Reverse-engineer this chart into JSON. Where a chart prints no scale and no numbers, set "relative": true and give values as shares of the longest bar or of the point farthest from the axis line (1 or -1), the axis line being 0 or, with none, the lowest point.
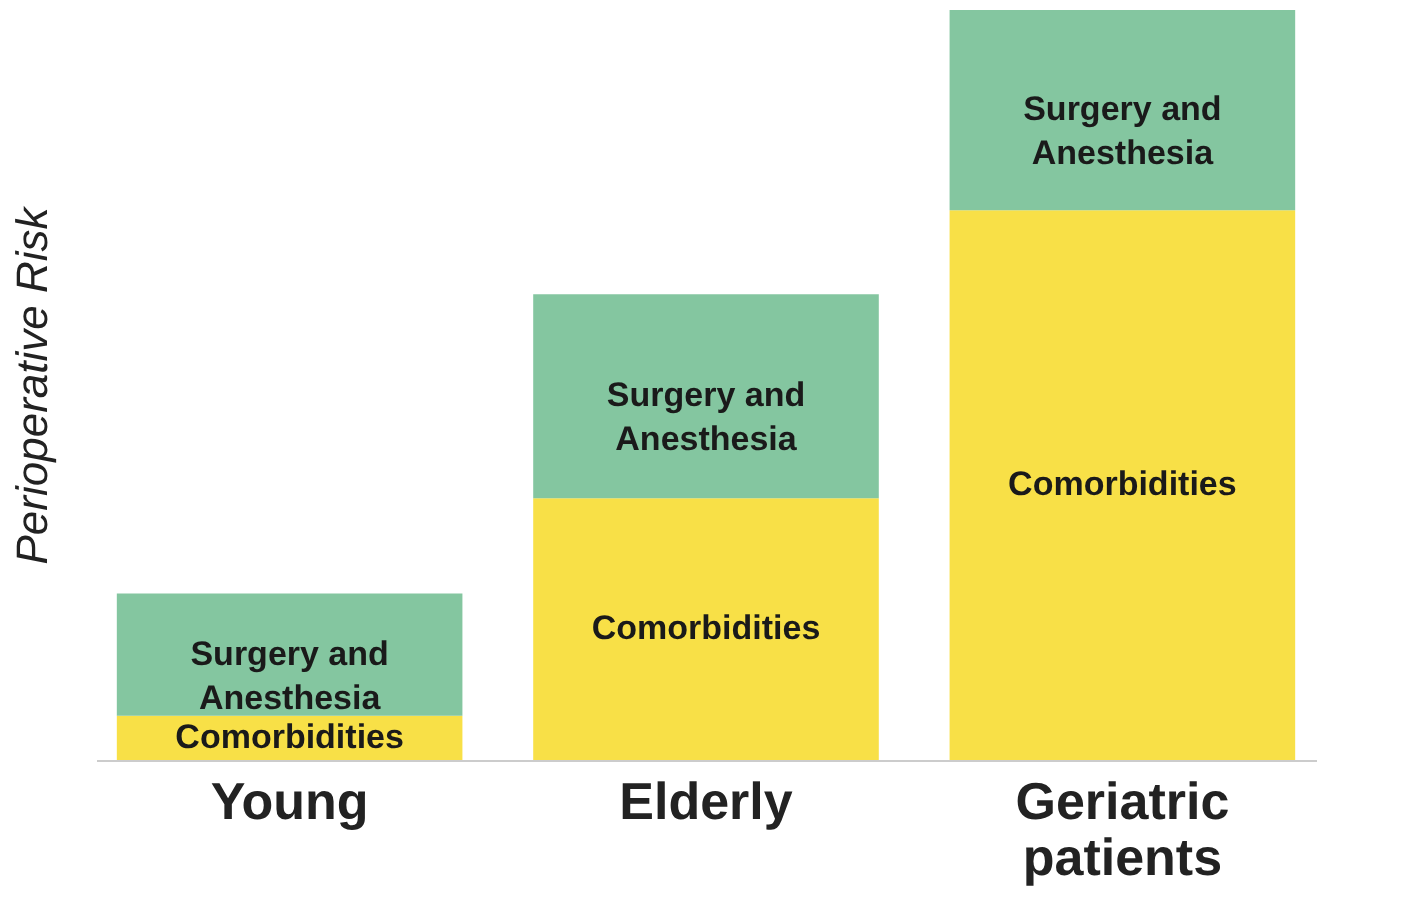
{
  "chart_data": {
    "type": "bar",
    "stacked": true,
    "relative": true,
    "ylabel": "Perioperative Risk",
    "categories": [
      "Young",
      "Elderly",
      "Geriatric patients"
    ],
    "series": [
      {
        "color": "#f8e047",
        "values": [
          0.059,
          0.349,
          0.733
        ]
      },
      {
        "color": "#84c6a0",
        "values": [
          0.163,
          0.272,
          0.267
        ]
      }
    ],
    "annotations": [
      "Comorbidities",
      "Surgery and Anesthesia",
      "Comorbidities",
      "Surgery and Anesthesia",
      "Comorbidities",
      "Surgery and Anesthesia"
    ],
    "grid": false
  }
}
